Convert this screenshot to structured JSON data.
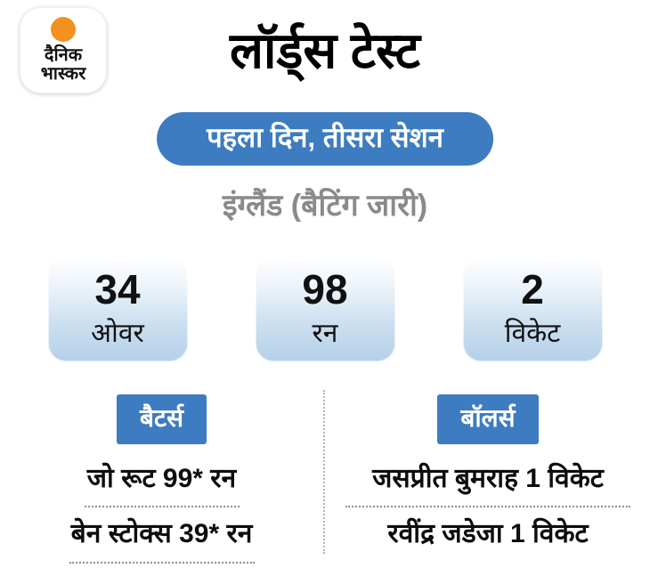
{
  "brand": {
    "logo_line1": "दैनिक",
    "logo_line2": "भास्कर"
  },
  "header": {
    "title": "लॉर्ड्स टेस्ट",
    "session_badge": "पहला दिन, तीसरा सेशन",
    "subtitle": "इंग्लैंड (बैटिंग जारी)"
  },
  "stats": [
    {
      "value": "34",
      "label": "ओवर"
    },
    {
      "value": "98",
      "label": "रन"
    },
    {
      "value": "2",
      "label": "विकेट"
    }
  ],
  "batters": {
    "heading": "बैटर्स",
    "rows": [
      "जो रूट 99* रन",
      "बेन स्टोक्स 39* रन"
    ]
  },
  "bowlers": {
    "heading": "बॉलर्स",
    "rows": [
      "जसप्रीत बुमराह 1 विकेट",
      "रवींद्र जडेजा 1 विकेट"
    ]
  },
  "colors": {
    "accent_blue": "#3d7cc0",
    "tile_gradient_top": "#ffffff",
    "tile_gradient_bottom": "#b5d0e8",
    "subtitle_gray": "#8a8a8a",
    "logo_orange": "#f29120",
    "text_black": "#0d0d0d"
  }
}
